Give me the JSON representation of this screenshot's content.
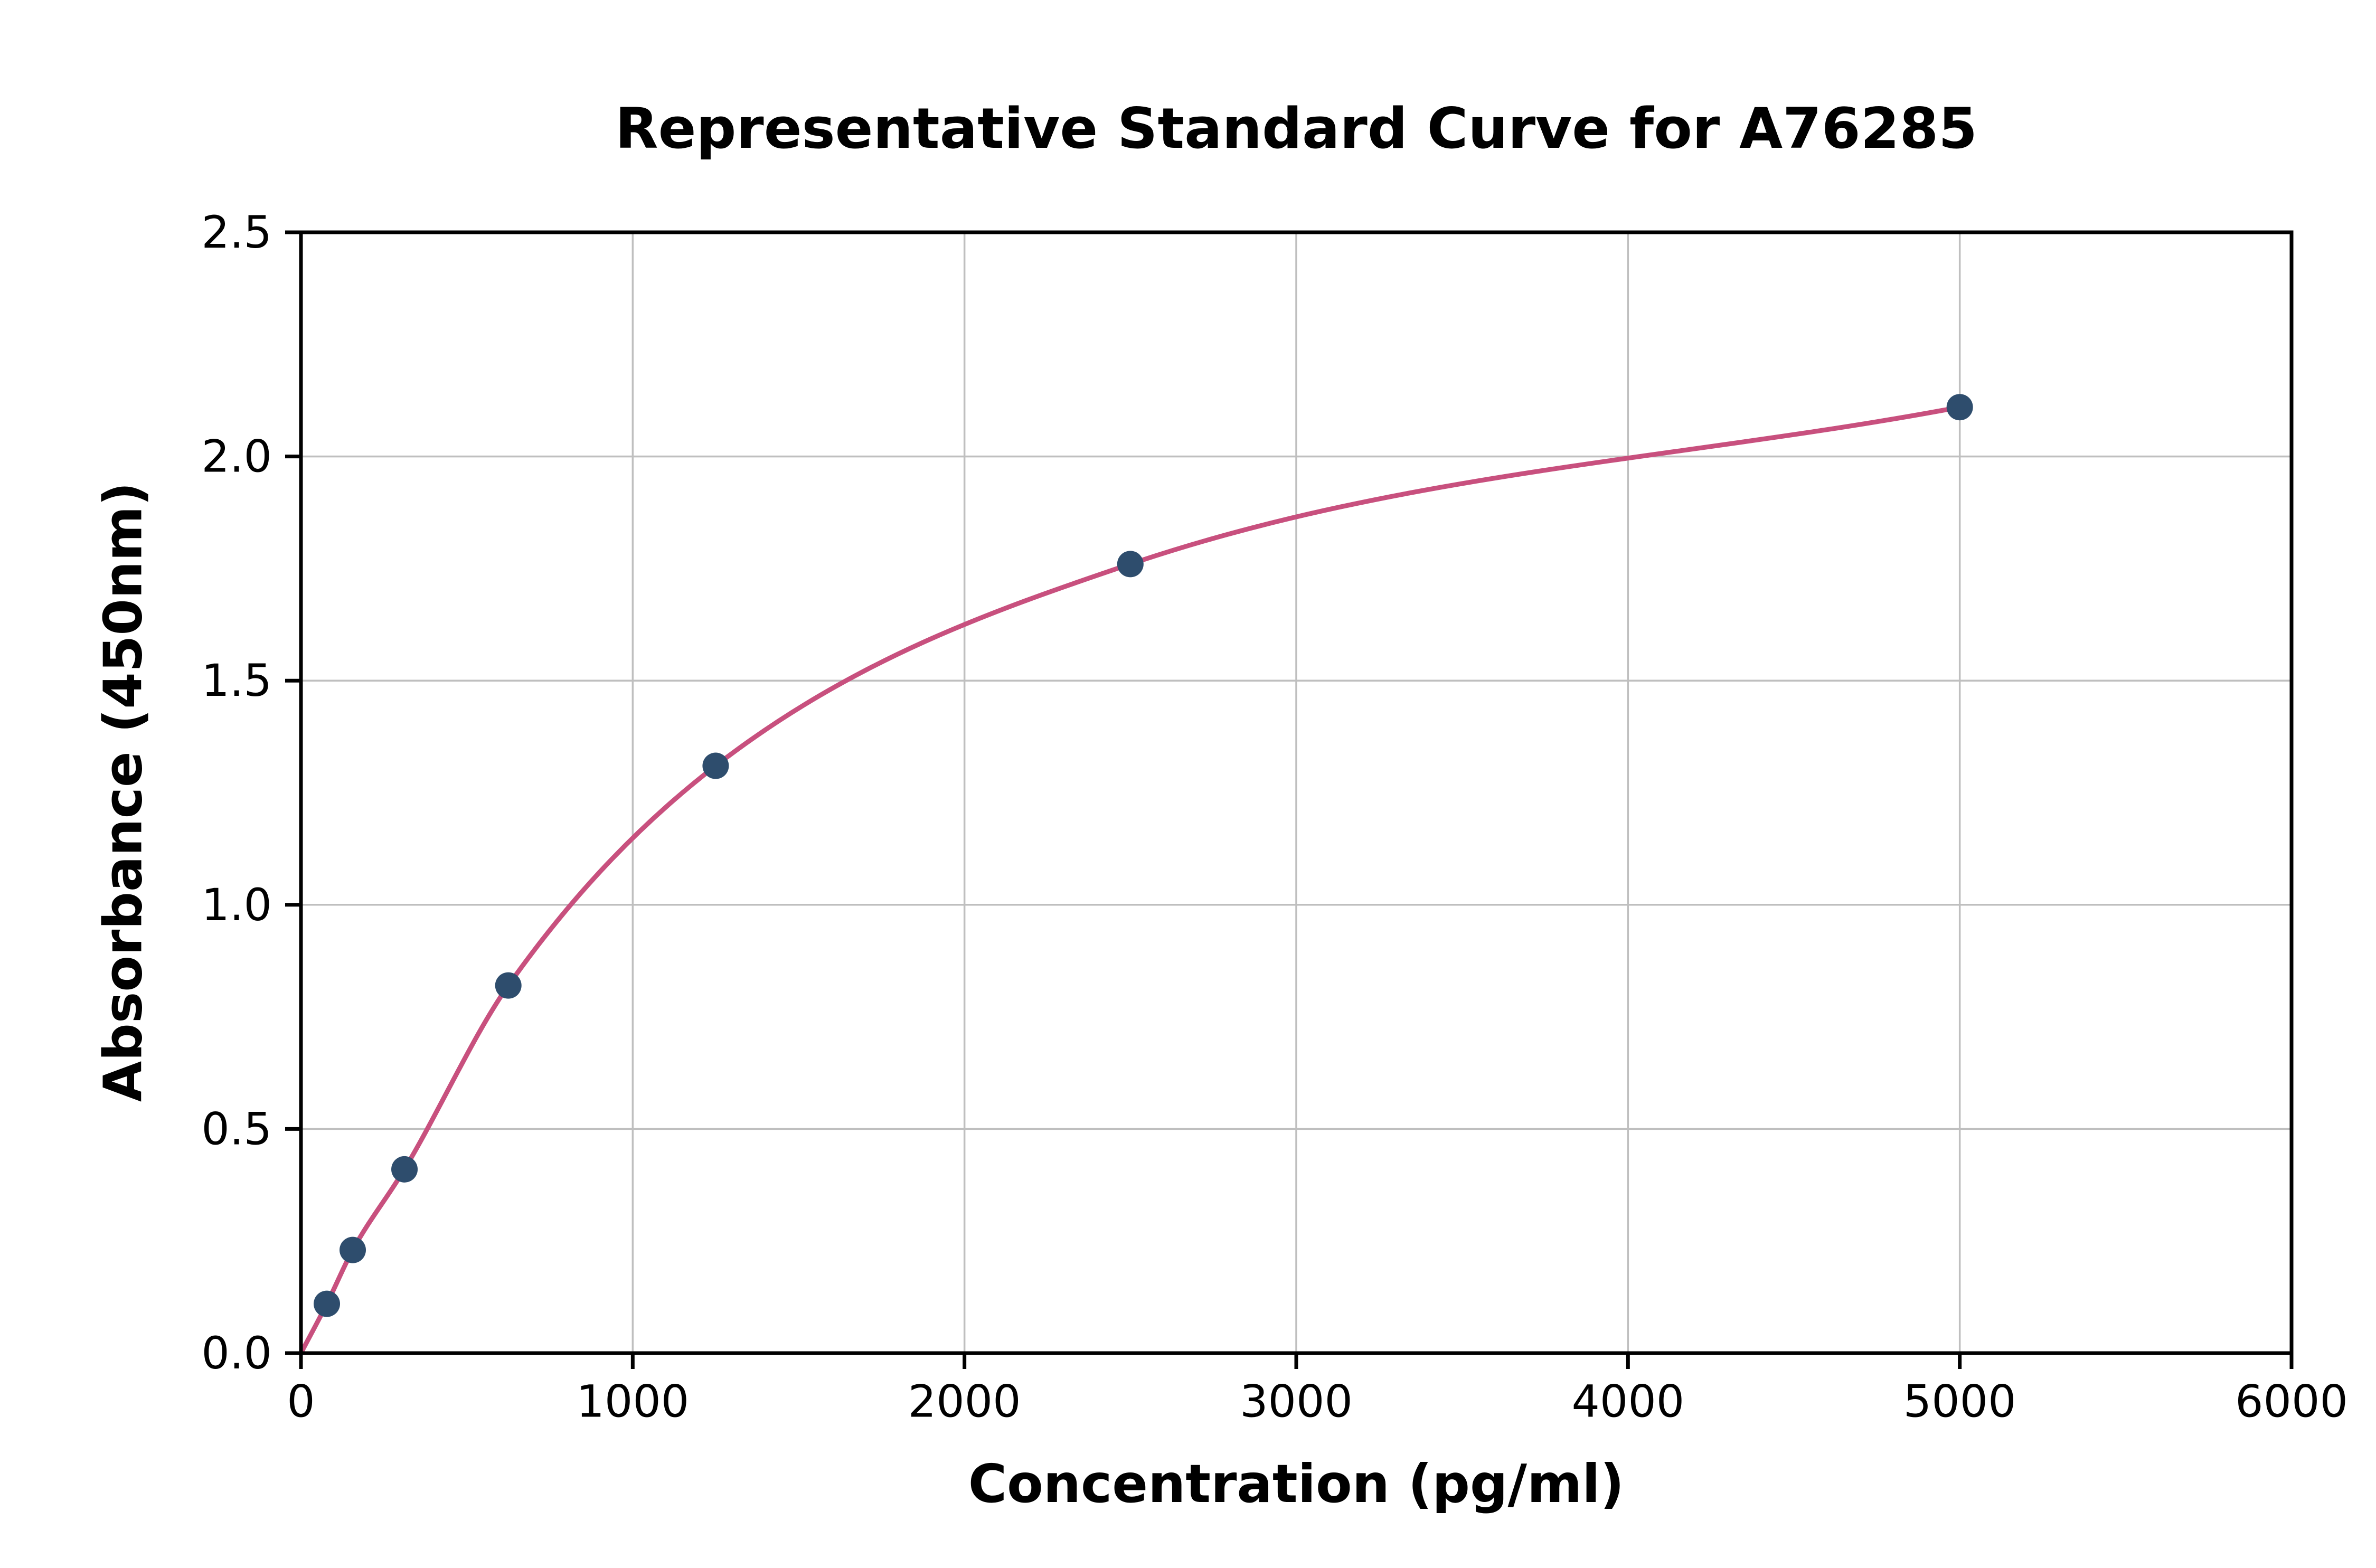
{
  "figure": {
    "background": "#ffffff"
  },
  "chart_data": {
    "type": "scatter",
    "title": "Representative Standard Curve for A76285",
    "xlabel": "Concentration (pg/ml)",
    "ylabel": "Absorbance (450nm)",
    "xlim": [
      0,
      6000
    ],
    "ylim": [
      0,
      2.5
    ],
    "x_ticks": [
      0,
      1000,
      2000,
      3000,
      4000,
      5000,
      6000
    ],
    "x_tick_labels": [
      "0",
      "1000",
      "2000",
      "3000",
      "4000",
      "5000",
      "6000"
    ],
    "y_ticks": [
      0,
      0.5,
      1.0,
      1.5,
      2.0,
      2.5
    ],
    "y_tick_labels": [
      "0.0",
      "0.5",
      "1.0",
      "1.5",
      "2.0",
      "2.5"
    ],
    "grid": true,
    "legend": "none",
    "series": [
      {
        "name": "standard-points",
        "type": "scatter",
        "x": [
          78,
          156,
          312,
          625,
          1250,
          2500,
          5000
        ],
        "y": [
          0.11,
          0.23,
          0.41,
          0.82,
          1.31,
          1.76,
          2.11
        ],
        "color": "#2e4d6d",
        "marker_radius": 25
      },
      {
        "name": "fitted-curve",
        "type": "line",
        "x": [
          0,
          78,
          156,
          312,
          625,
          1250,
          2500,
          5000
        ],
        "y": [
          0.0,
          0.11,
          0.23,
          0.41,
          0.82,
          1.31,
          1.76,
          2.11
        ],
        "color": "#c8507e",
        "line_width": 9
      }
    ],
    "colors": {
      "grid": "#bfbfbf",
      "axis": "#000000",
      "text": "#000000"
    }
  }
}
